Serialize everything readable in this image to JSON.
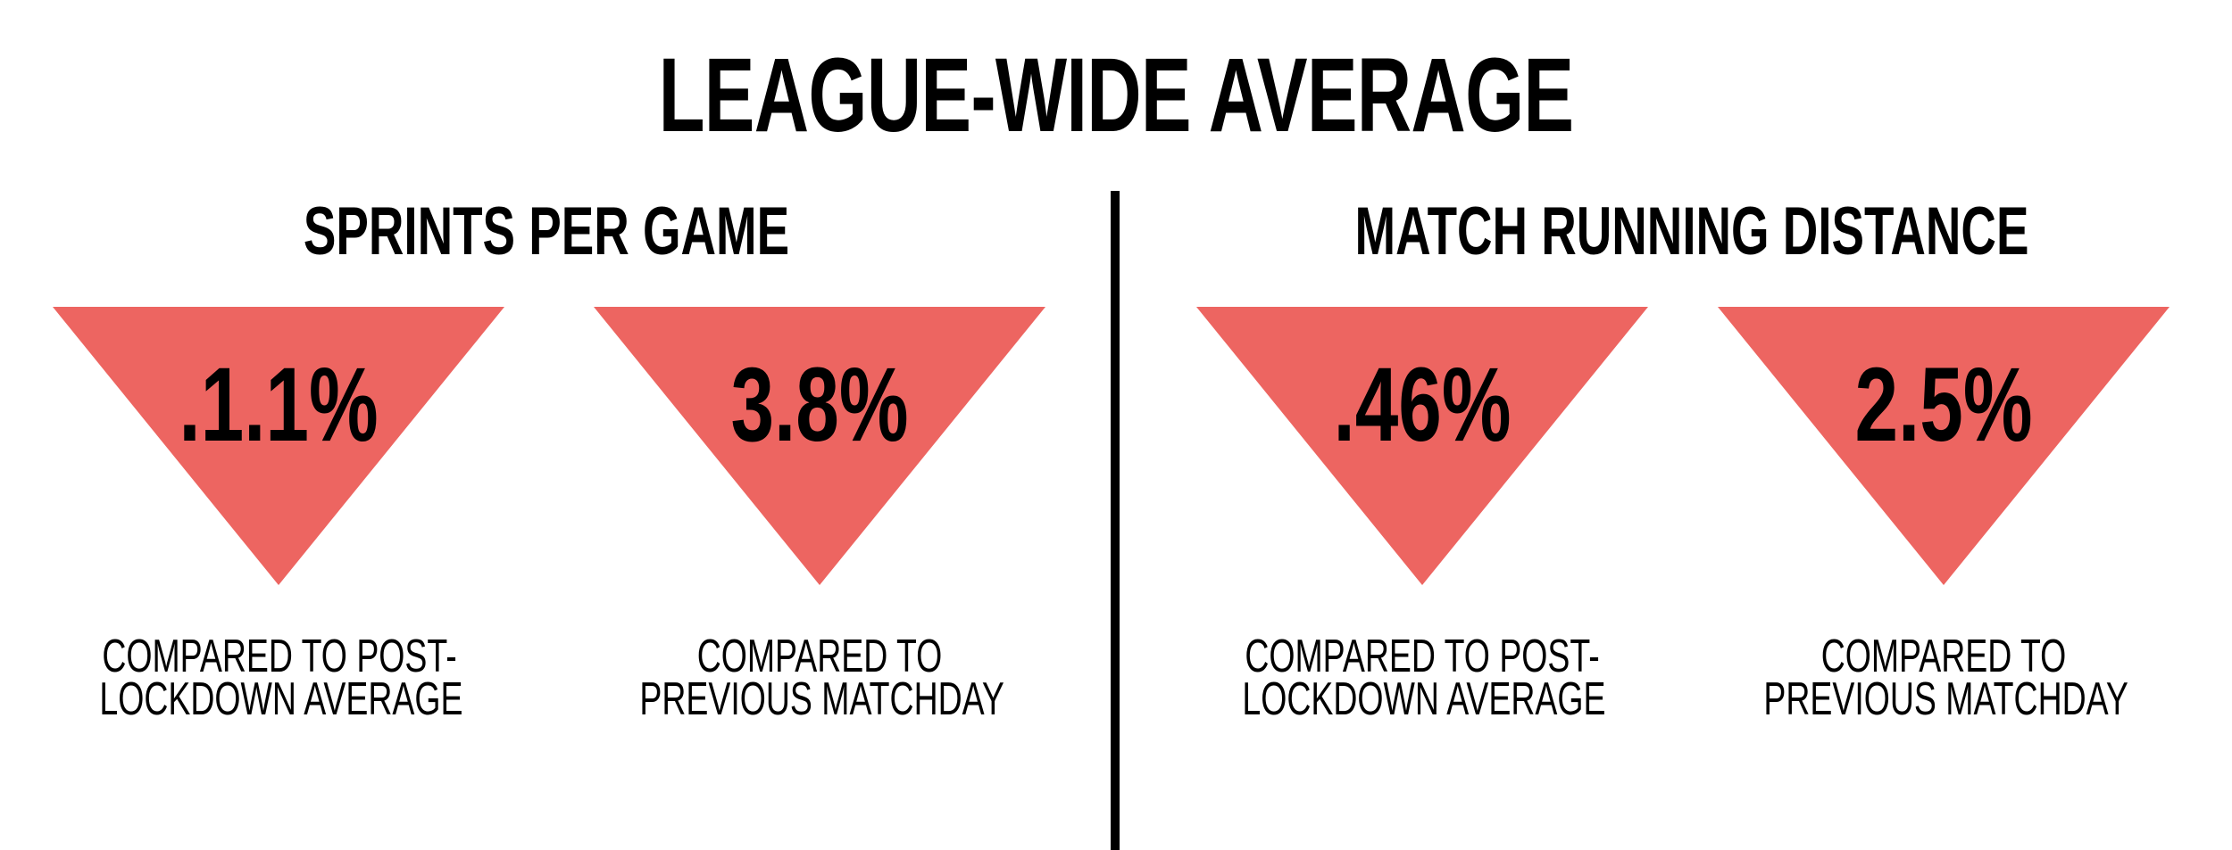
{
  "title": "LEAGUE-WIDE AVERAGE",
  "accent_color": "#ed6561",
  "sections": [
    {
      "title": "SPRINTS PER GAME",
      "stats": [
        {
          "value": ".1.1%",
          "caption_line1": "COMPARED TO POST-",
          "caption_line2": "LOCKDOWN AVERAGE",
          "direction": "down"
        },
        {
          "value": "3.8%",
          "caption_line1": "COMPARED TO",
          "caption_line2": "PREVIOUS MATCHDAY",
          "direction": "down"
        }
      ]
    },
    {
      "title": "MATCH RUNNING DISTANCE",
      "stats": [
        {
          "value": ".46%",
          "caption_line1": "COMPARED TO POST-",
          "caption_line2": "LOCKDOWN AVERAGE",
          "direction": "down"
        },
        {
          "value": "2.5%",
          "caption_line1": "COMPARED TO",
          "caption_line2": "PREVIOUS MATCHDAY",
          "direction": "down"
        }
      ]
    }
  ]
}
